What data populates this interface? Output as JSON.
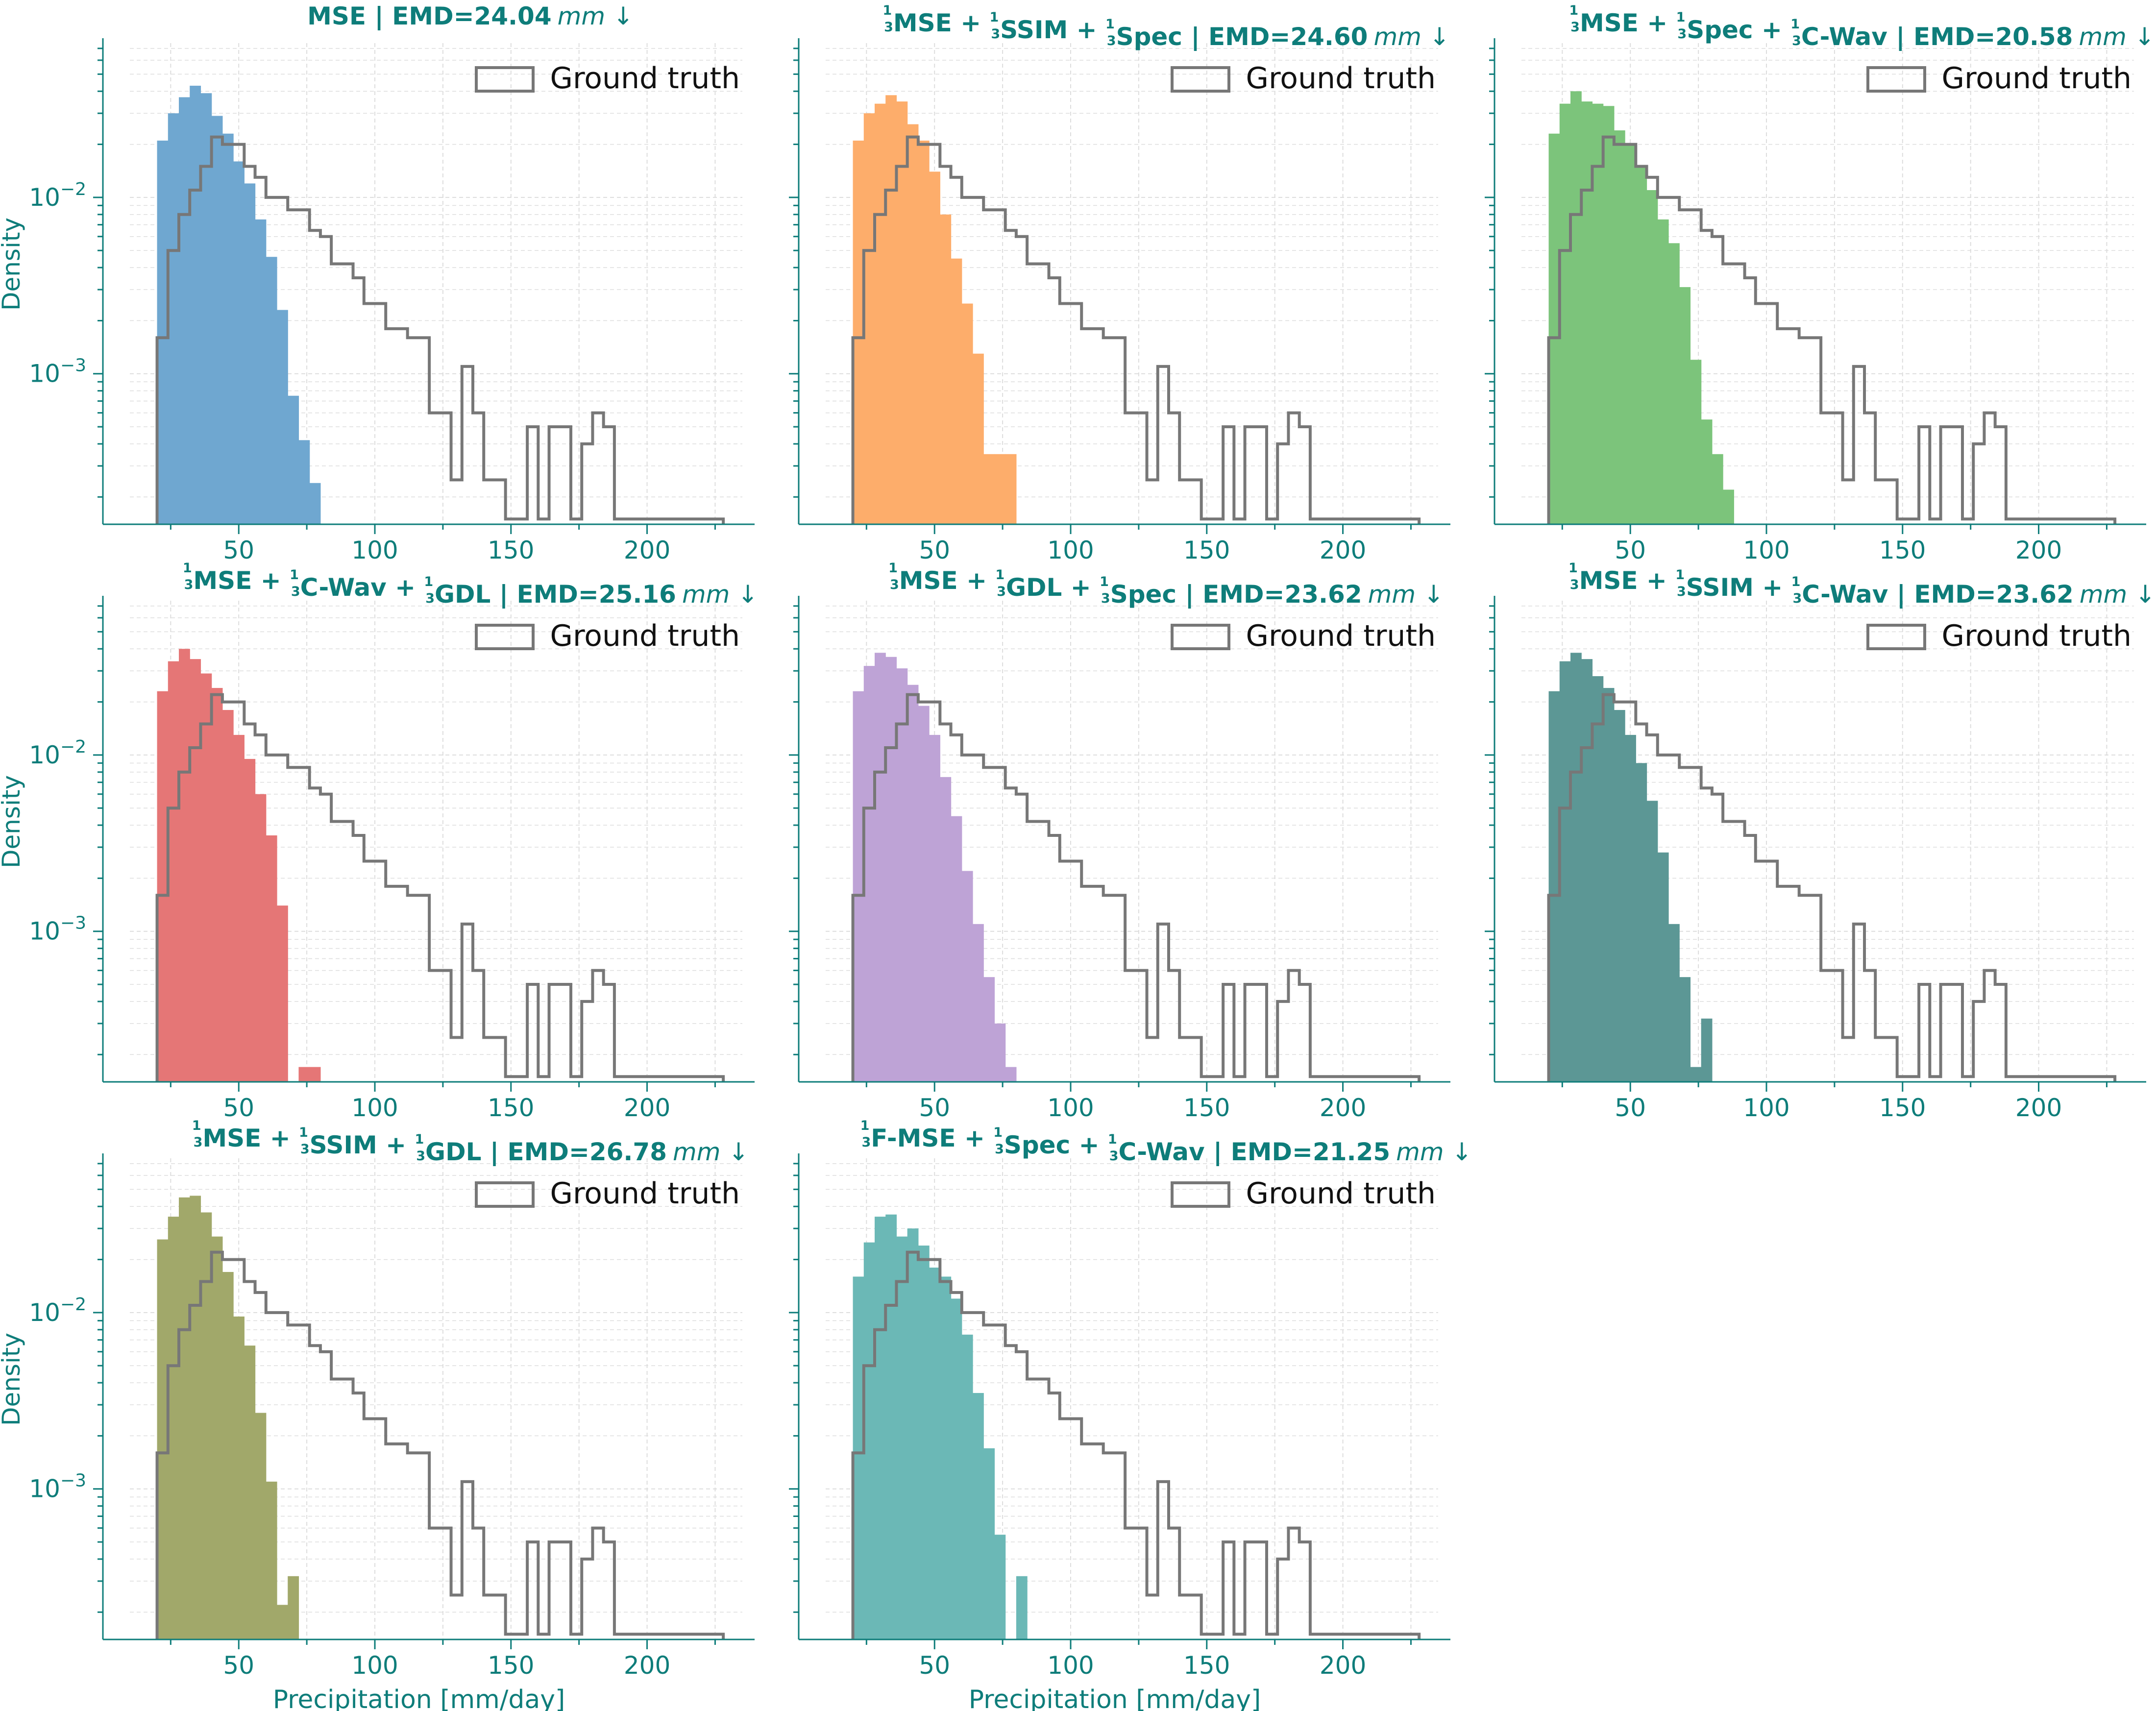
{
  "colors": {
    "axis": "#0e7d7a",
    "ground_truth": "#777777",
    "grid": "#dddddd"
  },
  "chart_data": [
    {
      "type": "histogram",
      "title_parts": [
        {
          "text": "MSE | EMD=24.04"
        },
        {
          "text": "mm ↓",
          "italic": true
        }
      ],
      "color": "#6fa7d0",
      "ylabel": "Density",
      "xlabel": "",
      "legend": "Ground truth",
      "legend_position": "top-right",
      "yscale": "log",
      "grid": true,
      "x_ticks": [
        50,
        100,
        150,
        200
      ],
      "y_ticks": [
        {
          "value": 0.01,
          "base": "10",
          "exp": "−2"
        },
        {
          "value": 0.001,
          "base": "10",
          "exp": "−3"
        }
      ],
      "xlim": [
        10,
        235
      ],
      "ylim": [
        0.00014,
        0.075
      ],
      "bin_edges": [
        20,
        24,
        28,
        32,
        36,
        40,
        44,
        48,
        52,
        56,
        60,
        64,
        68,
        72,
        76,
        80
      ],
      "density": [
        0.021,
        0.03,
        0.037,
        0.043,
        0.039,
        0.029,
        0.023,
        0.016,
        0.012,
        0.0075,
        0.0046,
        0.0023,
        0.00075,
        0.00042,
        0.00024
      ]
    },
    {
      "type": "histogram",
      "title_parts": [
        {
          "text": "1",
          "frac": true
        },
        {
          "text": "MSE + "
        },
        {
          "text": "1",
          "frac": true
        },
        {
          "text": "SSIM + "
        },
        {
          "text": "1",
          "frac": true
        },
        {
          "text": "Spec | EMD=24.60"
        },
        {
          "text": "mm ↓",
          "italic": true
        }
      ],
      "color": "#fdad6b",
      "ylabel": "",
      "xlabel": "",
      "legend": "Ground truth",
      "legend_position": "top-right",
      "yscale": "log",
      "grid": true,
      "x_ticks": [
        50,
        100,
        150,
        200
      ],
      "y_ticks": [],
      "xlim": [
        10,
        235
      ],
      "ylim": [
        0.00014,
        0.075
      ],
      "bin_edges": [
        20,
        24,
        28,
        32,
        36,
        40,
        44,
        48,
        52,
        56,
        60,
        64,
        68,
        72,
        76,
        80
      ],
      "density": [
        0.021,
        0.03,
        0.034,
        0.038,
        0.035,
        0.026,
        0.021,
        0.014,
        0.008,
        0.0045,
        0.0025,
        0.0013,
        0.00035,
        0.00035,
        0.00035
      ]
    },
    {
      "type": "histogram",
      "title_parts": [
        {
          "text": "1",
          "frac": true
        },
        {
          "text": "MSE + "
        },
        {
          "text": "1",
          "frac": true
        },
        {
          "text": "Spec + "
        },
        {
          "text": "1",
          "frac": true
        },
        {
          "text": "C-Wav | EMD=20.58"
        },
        {
          "text": "mm ↓",
          "italic": true
        }
      ],
      "color": "#7cc47b",
      "ylabel": "",
      "xlabel": "",
      "legend": "Ground truth",
      "legend_position": "top-right",
      "yscale": "log",
      "grid": true,
      "x_ticks": [
        50,
        100,
        150,
        200
      ],
      "y_ticks": [],
      "xlim": [
        10,
        235
      ],
      "ylim": [
        0.00014,
        0.075
      ],
      "bin_edges": [
        20,
        24,
        28,
        32,
        36,
        40,
        44,
        48,
        52,
        56,
        60,
        64,
        68,
        72,
        76,
        80,
        84,
        88
      ],
      "density": [
        0.023,
        0.034,
        0.04,
        0.035,
        0.034,
        0.033,
        0.024,
        0.02,
        0.015,
        0.011,
        0.0075,
        0.0055,
        0.0031,
        0.0012,
        0.00055,
        0.00035,
        0.00022
      ]
    },
    {
      "type": "histogram",
      "title_parts": [
        {
          "text": "1",
          "frac": true
        },
        {
          "text": "MSE + "
        },
        {
          "text": "1",
          "frac": true
        },
        {
          "text": "C-Wav + "
        },
        {
          "text": "1",
          "frac": true
        },
        {
          "text": "GDL | EMD=25.16"
        },
        {
          "text": "mm ↓",
          "italic": true
        }
      ],
      "color": "#e57676",
      "ylabel": "Density",
      "xlabel": "",
      "legend": "Ground truth",
      "legend_position": "top-right",
      "yscale": "log",
      "grid": true,
      "x_ticks": [
        50,
        100,
        150,
        200
      ],
      "y_ticks": [
        {
          "value": 0.01,
          "base": "10",
          "exp": "−2"
        },
        {
          "value": 0.001,
          "base": "10",
          "exp": "−3"
        }
      ],
      "xlim": [
        10,
        235
      ],
      "ylim": [
        0.00014,
        0.075
      ],
      "bin_edges": [
        20,
        24,
        28,
        32,
        36,
        40,
        44,
        48,
        52,
        56,
        60,
        64,
        68,
        72,
        76,
        80
      ],
      "density": [
        0.023,
        0.034,
        0.04,
        0.035,
        0.029,
        0.024,
        0.018,
        0.013,
        0.0095,
        0.006,
        0.0035,
        0.0014,
        0,
        0.00017,
        0.00017
      ]
    },
    {
      "type": "histogram",
      "title_parts": [
        {
          "text": "1",
          "frac": true
        },
        {
          "text": "MSE + "
        },
        {
          "text": "1",
          "frac": true
        },
        {
          "text": "GDL + "
        },
        {
          "text": "1",
          "frac": true
        },
        {
          "text": "Spec | EMD=23.62"
        },
        {
          "text": "mm ↓",
          "italic": true
        }
      ],
      "color": "#bea3d6",
      "ylabel": "",
      "xlabel": "",
      "legend": "Ground truth",
      "legend_position": "top-right",
      "yscale": "log",
      "grid": true,
      "x_ticks": [
        50,
        100,
        150,
        200
      ],
      "y_ticks": [],
      "xlim": [
        10,
        235
      ],
      "ylim": [
        0.00014,
        0.075
      ],
      "bin_edges": [
        20,
        24,
        28,
        32,
        36,
        40,
        44,
        48,
        52,
        56,
        60,
        64,
        68,
        72,
        76,
        80
      ],
      "density": [
        0.023,
        0.032,
        0.038,
        0.036,
        0.031,
        0.025,
        0.019,
        0.013,
        0.0075,
        0.0045,
        0.0022,
        0.0011,
        0.00055,
        0.0003,
        0.00017
      ]
    },
    {
      "type": "histogram",
      "title_parts": [
        {
          "text": "1",
          "frac": true
        },
        {
          "text": "MSE + "
        },
        {
          "text": "1",
          "frac": true
        },
        {
          "text": "SSIM + "
        },
        {
          "text": "1",
          "frac": true
        },
        {
          "text": "C-Wav | EMD=23.62"
        },
        {
          "text": "mm ↓",
          "italic": true
        }
      ],
      "color": "#5c9795",
      "ylabel": "",
      "xlabel": "",
      "legend": "Ground truth",
      "legend_position": "top-right",
      "yscale": "log",
      "grid": true,
      "x_ticks": [
        50,
        100,
        150,
        200
      ],
      "y_ticks": [],
      "xlim": [
        10,
        235
      ],
      "ylim": [
        0.00014,
        0.075
      ],
      "bin_edges": [
        20,
        24,
        28,
        32,
        36,
        40,
        44,
        48,
        52,
        56,
        60,
        64,
        68,
        72,
        76,
        80
      ],
      "density": [
        0.023,
        0.034,
        0.038,
        0.035,
        0.028,
        0.024,
        0.018,
        0.013,
        0.009,
        0.0055,
        0.0028,
        0.0011,
        0.00055,
        0.00017,
        0.00032
      ]
    },
    {
      "type": "histogram",
      "title_parts": [
        {
          "text": "1",
          "frac": true
        },
        {
          "text": "MSE + "
        },
        {
          "text": "1",
          "frac": true
        },
        {
          "text": "SSIM + "
        },
        {
          "text": "1",
          "frac": true
        },
        {
          "text": "GDL | EMD=26.78"
        },
        {
          "text": "mm ↓",
          "italic": true
        }
      ],
      "color": "#a1a86a",
      "ylabel": "Density",
      "xlabel": "Precipitation [mm/day]",
      "legend": "Ground truth",
      "legend_position": "top-right",
      "yscale": "log",
      "grid": true,
      "x_ticks": [
        50,
        100,
        150,
        200
      ],
      "y_ticks": [
        {
          "value": 0.01,
          "base": "10",
          "exp": "−2"
        },
        {
          "value": 0.001,
          "base": "10",
          "exp": "−3"
        }
      ],
      "xlim": [
        10,
        235
      ],
      "ylim": [
        0.00014,
        0.075
      ],
      "bin_edges": [
        20,
        24,
        28,
        32,
        36,
        40,
        44,
        48,
        52,
        56,
        60,
        64,
        68,
        72
      ],
      "density": [
        0.026,
        0.035,
        0.045,
        0.046,
        0.037,
        0.027,
        0.017,
        0.0095,
        0.0065,
        0.0027,
        0.0011,
        0.00022,
        0.00032
      ]
    },
    {
      "type": "histogram",
      "title_parts": [
        {
          "text": "1",
          "frac": true
        },
        {
          "text": "F-MSE + "
        },
        {
          "text": "1",
          "frac": true
        },
        {
          "text": "Spec + "
        },
        {
          "text": "1",
          "frac": true
        },
        {
          "text": "C-Wav | EMD=21.25"
        },
        {
          "text": "mm ↓",
          "italic": true
        }
      ],
      "color": "#6bb8b6",
      "ylabel": "",
      "xlabel": "Precipitation [mm/day]",
      "legend": "Ground truth",
      "legend_position": "top-right",
      "yscale": "log",
      "grid": true,
      "x_ticks": [
        50,
        100,
        150,
        200
      ],
      "y_ticks": [],
      "xlim": [
        10,
        235
      ],
      "ylim": [
        0.00014,
        0.075
      ],
      "bin_edges": [
        20,
        24,
        28,
        32,
        36,
        40,
        44,
        48,
        52,
        56,
        60,
        64,
        68,
        72,
        76,
        80,
        84
      ],
      "density": [
        0.016,
        0.025,
        0.035,
        0.036,
        0.027,
        0.03,
        0.024,
        0.018,
        0.016,
        0.012,
        0.0075,
        0.0035,
        0.0017,
        0.00055,
        0,
        0.00032
      ]
    }
  ],
  "ground_truth": {
    "bin_edges": [
      20,
      24,
      28,
      32,
      36,
      40,
      44,
      48,
      52,
      56,
      60,
      64,
      68,
      72,
      76,
      80,
      84,
      88,
      92,
      96,
      100,
      104,
      108,
      112,
      116,
      120,
      124,
      128,
      132,
      136,
      140,
      144,
      148,
      152,
      156,
      160,
      164,
      168,
      172,
      176,
      180,
      184,
      188,
      192,
      196,
      200,
      204,
      208,
      212,
      216,
      220,
      224,
      228
    ],
    "density": [
      0.0016,
      0.005,
      0.008,
      0.011,
      0.015,
      0.022,
      0.02,
      0.02,
      0.015,
      0.013,
      0.01,
      0.01,
      0.0085,
      0.0085,
      0.0065,
      0.006,
      0.0042,
      0.0042,
      0.0035,
      0.0025,
      0.0025,
      0.0018,
      0.0018,
      0.0016,
      0.0016,
      0.0006,
      0.0006,
      0.00025,
      0.0011,
      0.0006,
      0.00025,
      0.00025,
      0.00015,
      0.00015,
      0.0005,
      0.00015,
      0.0005,
      0.0005,
      0.00015,
      0.0004,
      0.0006,
      0.0005,
      0.00015,
      0.00015,
      0.00015,
      0.00015,
      0.00015,
      0.00015,
      0.00015,
      0.00015,
      0.00015,
      0.00015
    ]
  }
}
